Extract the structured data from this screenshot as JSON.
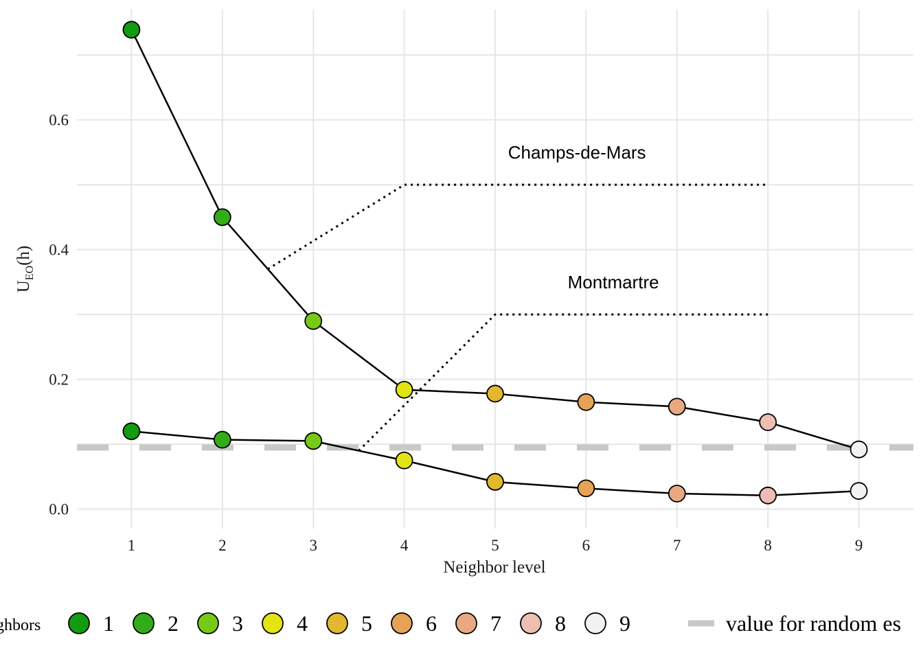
{
  "chart_data": {
    "type": "line",
    "xlabel": "Neighbor level",
    "ylabel_main": "U",
    "ylabel_sub": "EO",
    "ylabel_tail": "(h)",
    "x": [
      1,
      2,
      3,
      4,
      5,
      6,
      7,
      8,
      9
    ],
    "xlim": [
      0.4,
      9.6
    ],
    "ylim": [
      -0.03,
      0.77
    ],
    "y_ticks": [
      0.0,
      0.2,
      0.4,
      0.6
    ],
    "y_tick_labels": [
      "0.0",
      "0.2",
      "0.4",
      "0.6"
    ],
    "grid": true,
    "series": [
      {
        "values": [
          0.739,
          0.45,
          0.29,
          0.184,
          0.178,
          0.165,
          0.158,
          0.134,
          0.092
        ]
      },
      {
        "values": [
          0.12,
          0.107,
          0.105,
          0.075,
          0.042,
          0.032,
          0.024,
          0.021,
          0.028
        ]
      }
    ],
    "reference_line": {
      "y": 0.095,
      "label": "value for random es"
    },
    "annotations": [
      {
        "text": "Champs-de-Mars",
        "x": 5.9,
        "y": 0.55,
        "line": [
          [
            2.5,
            0.37
          ],
          [
            4,
            0.5
          ],
          [
            8,
            0.5
          ]
        ]
      },
      {
        "text": "Montmartre",
        "x": 6.3,
        "y": 0.35,
        "line": [
          [
            3.5,
            0.09
          ],
          [
            5,
            0.3
          ],
          [
            8,
            0.3
          ]
        ]
      }
    ],
    "legend": {
      "position": "bottom",
      "title": "ghbors",
      "items": [
        {
          "label": "1",
          "color": "#139b12"
        },
        {
          "label": "2",
          "color": "#33ad17"
        },
        {
          "label": "3",
          "color": "#77c916"
        },
        {
          "label": "4",
          "color": "#e3e414"
        },
        {
          "label": "5",
          "color": "#e1b830"
        },
        {
          "label": "6",
          "color": "#e6a256"
        },
        {
          "label": "7",
          "color": "#e8a982"
        },
        {
          "label": "8",
          "color": "#edbeb3"
        },
        {
          "label": "9",
          "color": "#f2f2f2"
        }
      ]
    },
    "reference_color": "#c8c8c8"
  }
}
